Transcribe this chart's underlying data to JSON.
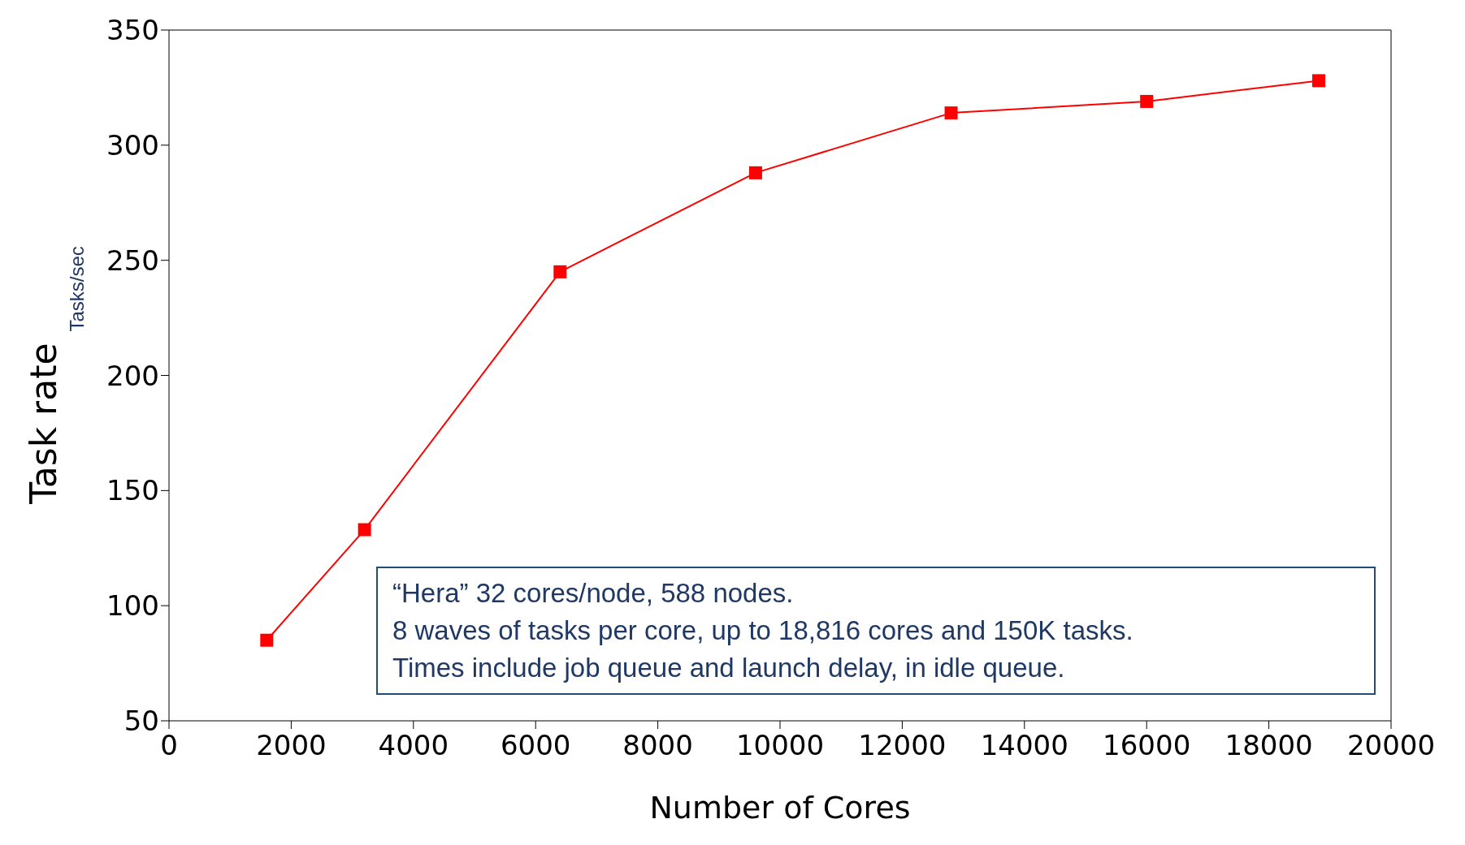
{
  "chart_data": {
    "type": "line",
    "xlabel": "Number of Cores",
    "ylabel": "Task rate",
    "x": [
      1600,
      3200,
      6400,
      9600,
      12800,
      16000,
      18816
    ],
    "series": [
      {
        "color": "#ff0000",
        "values": [
          85,
          133,
          245,
          288,
          314,
          319,
          328
        ]
      }
    ],
    "xlim": [
      0,
      20000
    ],
    "xticks": [
      0,
      2000,
      4000,
      6000,
      8000,
      10000,
      12000,
      14000,
      16000,
      18000,
      20000
    ],
    "ylim": [
      50,
      350
    ],
    "yticks": [
      50,
      100,
      150,
      200,
      250,
      300,
      350
    ],
    "marker": "square",
    "line_style": "solid",
    "annotations": [
      "Tasks/sec",
      "“Hera” 32 cores/node, 588 nodes.",
      "8 waves of tasks per core, up to 18,816 cores and 150K tasks.",
      "Times include job queue and launch delay, in idle queue."
    ]
  }
}
